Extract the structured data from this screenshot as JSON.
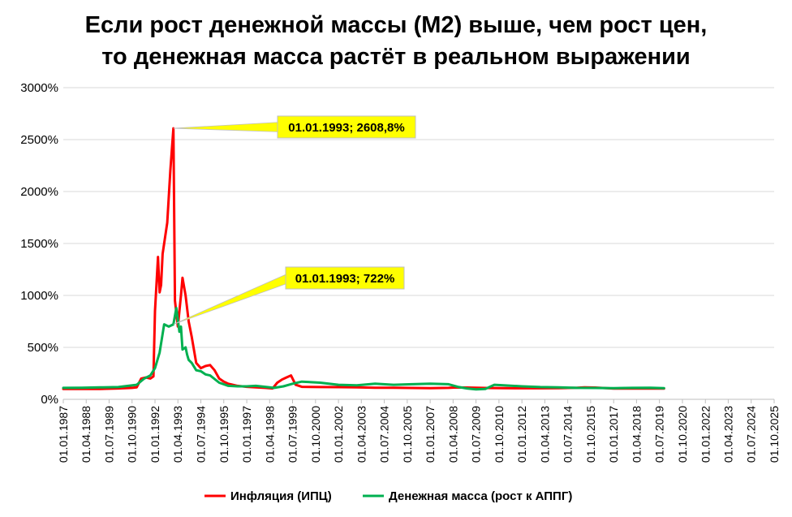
{
  "chart_data": {
    "type": "line",
    "title": "Если рост денежной массы (М2) выше, чем рост цен,",
    "subtitle": "то денежная масса растёт в реальном выражении",
    "xlabel": "",
    "ylabel": "",
    "ylim": [
      0,
      3000
    ],
    "y_tick_values": [
      0,
      500,
      1000,
      1500,
      2000,
      2500,
      3000
    ],
    "y_tick_labels": [
      "0%",
      "500%",
      "1000%",
      "1500%",
      "2000%",
      "2500%",
      "3000%"
    ],
    "x_range": [
      "1987-01-01",
      "2025-10-01"
    ],
    "x_tick_labels": [
      "01.01.1987",
      "01.04.1988",
      "01.07.1989",
      "01.10.1990",
      "01.01.1992",
      "01.04.1993",
      "01.07.1994",
      "01.10.1995",
      "01.01.1997",
      "01.04.1998",
      "01.07.1999",
      "01.10.2000",
      "01.01.2002",
      "01.04.2003",
      "01.07.2004",
      "01.10.2005",
      "01.01.2007",
      "01.04.2008",
      "01.07.2009",
      "01.10.2010",
      "01.01.2012",
      "01.04.2013",
      "01.07.2014",
      "01.10.2015",
      "01.01.2017",
      "01.04.2018",
      "01.07.2019",
      "01.10.2020",
      "01.01.2022",
      "01.04.2023",
      "01.07.2024",
      "01.10.2025"
    ],
    "x_tick_dates": [
      "1987-01-01",
      "1988-04-01",
      "1989-07-01",
      "1990-10-01",
      "1992-01-01",
      "1993-04-01",
      "1994-07-01",
      "1995-10-01",
      "1997-01-01",
      "1998-04-01",
      "1999-07-01",
      "2000-10-01",
      "2002-01-01",
      "2003-04-01",
      "2004-07-01",
      "2005-10-01",
      "2007-01-01",
      "2008-04-01",
      "2009-07-01",
      "2010-10-01",
      "2012-01-01",
      "2013-04-01",
      "2014-07-01",
      "2015-10-01",
      "2017-01-01",
      "2018-04-01",
      "2019-07-01",
      "2020-10-01",
      "2022-01-01",
      "2023-04-01",
      "2024-07-01",
      "2025-10-01"
    ],
    "grid": "horizontal",
    "legend_position": "bottom",
    "series": [
      {
        "name": "Инфляция (ИПЦ)",
        "color": "#ff0000",
        "x": [
          "1987-01-01",
          "1988-01-01",
          "1989-01-01",
          "1990-01-01",
          "1990-10-01",
          "1991-01-01",
          "1991-04-01",
          "1991-07-01",
          "1991-10-01",
          "1991-12-01",
          "1992-01-01",
          "1992-03-01",
          "1992-04-01",
          "1992-05-01",
          "1992-06-01",
          "1992-07-01",
          "1992-09-01",
          "1992-11-01",
          "1993-01-01",
          "1993-02-01",
          "1993-04-01",
          "1993-06-01",
          "1993-07-01",
          "1993-09-01",
          "1993-11-01",
          "1994-01-01",
          "1994-04-01",
          "1994-07-01",
          "1994-10-01",
          "1995-01-01",
          "1995-04-01",
          "1995-07-01",
          "1995-10-01",
          "1996-01-01",
          "1996-07-01",
          "1997-01-01",
          "1997-07-01",
          "1998-01-01",
          "1998-06-01",
          "1998-09-01",
          "1998-12-01",
          "1999-03-01",
          "1999-06-01",
          "1999-09-01",
          "2000-01-01",
          "2001-01-01",
          "2002-01-01",
          "2003-01-01",
          "2004-01-01",
          "2005-01-01",
          "2006-01-01",
          "2007-01-01",
          "2008-01-01",
          "2008-06-01",
          "2009-01-01",
          "2010-01-01",
          "2011-01-01",
          "2012-01-01",
          "2013-01-01",
          "2014-01-01",
          "2015-01-01",
          "2015-06-01",
          "2016-01-01",
          "2017-01-01",
          "2018-01-01",
          "2019-01-01",
          "2019-10-01"
        ],
        "values": [
          100,
          100,
          100,
          105,
          110,
          115,
          200,
          210,
          200,
          220,
          850,
          1370,
          1030,
          1100,
          1400,
          1500,
          1700,
          2200,
          2608.8,
          950,
          700,
          1000,
          1170,
          1000,
          750,
          600,
          350,
          300,
          320,
          330,
          280,
          200,
          170,
          150,
          130,
          120,
          115,
          110,
          105,
          160,
          190,
          210,
          230,
          140,
          120,
          118,
          117,
          115,
          111,
          112,
          109,
          108,
          110,
          114,
          113,
          109,
          107,
          106,
          106,
          107,
          111,
          115,
          113,
          104,
          103,
          104,
          103
        ]
      },
      {
        "name": "Денежная масса (рост к АППГ)",
        "color": "#00b050",
        "x": [
          "1987-01-01",
          "1988-01-01",
          "1989-01-01",
          "1990-01-01",
          "1991-01-01",
          "1991-06-01",
          "1991-10-01",
          "1992-01-01",
          "1992-04-01",
          "1992-07-01",
          "1992-10-01",
          "1993-01-01",
          "1993-03-01",
          "1993-05-01",
          "1993-06-01",
          "1993-07-01",
          "1993-09-01",
          "1993-10-01",
          "1993-11-01",
          "1994-01-01",
          "1994-04-01",
          "1994-07-01",
          "1994-10-01",
          "1995-01-01",
          "1995-07-01",
          "1996-01-01",
          "1996-07-01",
          "1997-01-01",
          "1997-07-01",
          "1998-01-01",
          "1998-07-01",
          "1999-01-01",
          "1999-07-01",
          "2000-01-01",
          "2001-01-01",
          "2002-01-01",
          "2003-01-01",
          "2004-01-01",
          "2005-01-01",
          "2006-01-01",
          "2007-01-01",
          "2008-01-01",
          "2008-07-01",
          "2009-01-01",
          "2009-07-01",
          "2010-01-01",
          "2010-07-01",
          "2011-01-01",
          "2012-01-01",
          "2013-01-01",
          "2014-01-01",
          "2015-01-01",
          "2016-01-01",
          "2017-01-01",
          "2018-01-01",
          "2019-01-01",
          "2019-10-01"
        ],
        "values": [
          110,
          112,
          115,
          118,
          140,
          200,
          230,
          300,
          450,
          722,
          700,
          722,
          880,
          650,
          700,
          480,
          500,
          430,
          380,
          350,
          280,
          270,
          240,
          230,
          160,
          130,
          125,
          125,
          130,
          120,
          110,
          125,
          150,
          170,
          160,
          140,
          135,
          150,
          140,
          145,
          150,
          145,
          120,
          105,
          95,
          100,
          140,
          135,
          125,
          118,
          115,
          110,
          109,
          108,
          110,
          111,
          108
        ]
      }
    ],
    "annotations": [
      {
        "text": "01.01.1993; 2608,8%",
        "series": 0,
        "x": "1993-01-01",
        "y": 2608.8,
        "bg": "#ffff00"
      },
      {
        "text": "01.01.1993; 722%",
        "series": 1,
        "x": "1993-01-01",
        "y": 722,
        "bg": "#ffff00"
      }
    ]
  }
}
